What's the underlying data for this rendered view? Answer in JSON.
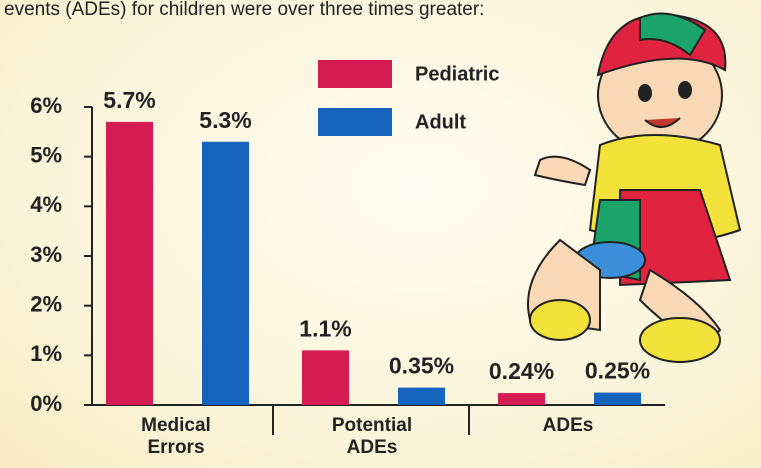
{
  "chart_data": {
    "type": "bar",
    "subtitle": "events (ADEs) for children were over three times greater:",
    "categories": [
      "Medical Errors",
      "Potential ADEs",
      "ADEs"
    ],
    "series": [
      {
        "name": "Pediatric",
        "color": "#d41c52",
        "values": [
          5.7,
          1.1,
          0.24
        ],
        "value_labels": [
          "5.7%",
          "1.1%",
          "0.24%"
        ]
      },
      {
        "name": "Adult",
        "color": "#1663bd",
        "values": [
          5.3,
          0.35,
          0.25
        ],
        "value_labels": [
          "5.3%",
          "0.35%",
          "0.25%"
        ]
      }
    ],
    "ylim": [
      0,
      6
    ],
    "yticks": [
      {
        "value": 0,
        "label": "0%"
      },
      {
        "value": 1,
        "label": "1%"
      },
      {
        "value": 2,
        "label": "2%"
      },
      {
        "value": 3,
        "label": "3%"
      },
      {
        "value": 4,
        "label": "4%"
      },
      {
        "value": 5,
        "label": "5%"
      },
      {
        "value": 6,
        "label": "6%"
      }
    ]
  }
}
